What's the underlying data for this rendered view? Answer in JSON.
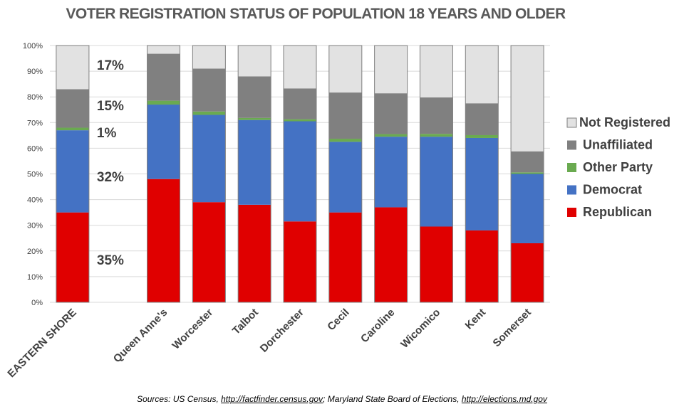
{
  "chart_data": {
    "type": "bar",
    "stacked": true,
    "percent_stacked": true,
    "title": "VOTER REGISTRATION STATUS OF POPULATION 18 YEARS AND OLDER",
    "xlabel": "",
    "ylabel": "",
    "ylim": [
      0,
      100
    ],
    "yticks": [
      "0%",
      "10%",
      "20%",
      "30%",
      "40%",
      "50%",
      "60%",
      "70%",
      "80%",
      "90%",
      "100%"
    ],
    "grid": true,
    "legend_position": "right",
    "categories": [
      "EASTERN SHORE",
      "",
      "Queen Anne's",
      "Worcester",
      "Talbot",
      "Dorchester",
      "Cecil",
      "Caroline",
      "Wicomico",
      "Kent",
      "Somerset"
    ],
    "series": [
      {
        "name": "Republican",
        "color": "#e00000",
        "values": [
          35,
          null,
          48,
          39,
          38,
          31.5,
          35,
          37,
          29.5,
          28,
          23
        ]
      },
      {
        "name": "Democrat",
        "color": "#4472c4",
        "values": [
          32,
          null,
          29,
          34,
          33,
          39,
          27.5,
          27.5,
          35,
          36,
          27
        ]
      },
      {
        "name": "Other Party",
        "color": "#6aaa50",
        "values": [
          1,
          null,
          1.5,
          1.3,
          0.8,
          0.8,
          1.2,
          1,
          1.1,
          1.1,
          0.6
        ]
      },
      {
        "name": "Unaffiliated",
        "color": "#808080",
        "values": [
          15,
          null,
          18.3,
          16.7,
          16.2,
          12,
          18,
          15.9,
          14.2,
          12.4,
          8.2
        ]
      },
      {
        "name": "Not Registered",
        "color": "#e2e2e2",
        "values": [
          17,
          null,
          3.2,
          9,
          12,
          16.7,
          18.3,
          18.6,
          20.2,
          22.5,
          41.2
        ]
      }
    ],
    "annotations": [
      {
        "category": "EASTERN SHORE",
        "series": "Not Registered",
        "text": "17%"
      },
      {
        "category": "EASTERN SHORE",
        "series": "Unaffiliated",
        "text": "15%"
      },
      {
        "category": "EASTERN SHORE",
        "series": "Other Party",
        "text": "1%"
      },
      {
        "category": "EASTERN SHORE",
        "series": "Democrat",
        "text": "32%"
      },
      {
        "category": "EASTERN SHORE",
        "series": "Republican",
        "text": "35%"
      }
    ],
    "legend": [
      "Not Registered",
      "Unaffiliated",
      "Other Party",
      "Democrat",
      "Republican"
    ]
  },
  "footer": {
    "prefix": "Sources: US Census, ",
    "link1": "http://factfinder.census.gov",
    "middle": "; Maryland State Board of Elections, ",
    "link2": "http://elections.md.gov"
  }
}
